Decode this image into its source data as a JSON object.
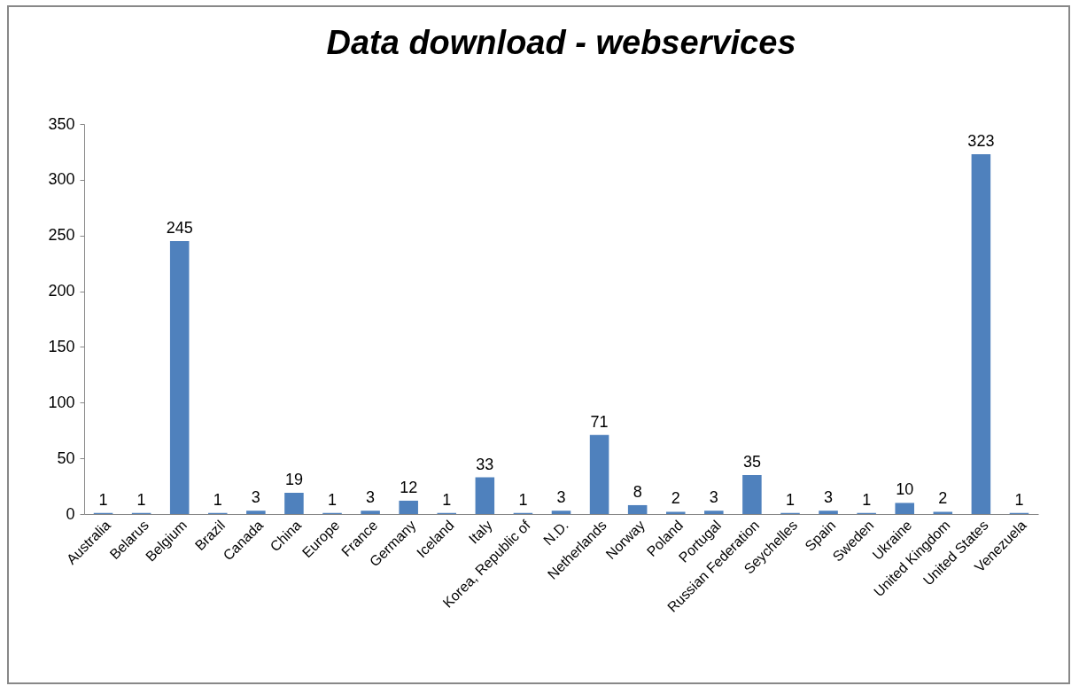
{
  "chart_data": {
    "type": "bar",
    "title": "Data download - webservices",
    "categories": [
      "Australia",
      "Belarus",
      "Belgium",
      "Brazil",
      "Canada",
      "China",
      "Europe",
      "France",
      "Germany",
      "Iceland",
      "Italy",
      "Korea, Republic of",
      "N.D.",
      "Netherlands",
      "Norway",
      "Poland",
      "Portugal",
      "Russian Federation",
      "Seychelles",
      "Spain",
      "Sweden",
      "Ukraine",
      "United Kingdom",
      "United States",
      "Venezuela"
    ],
    "values": [
      1,
      1,
      245,
      1,
      3,
      19,
      1,
      3,
      12,
      1,
      33,
      1,
      3,
      71,
      8,
      2,
      3,
      35,
      1,
      3,
      1,
      10,
      2,
      323,
      1
    ],
    "color": "#4f81bd",
    "ylim": [
      0,
      350
    ],
    "yticks": [
      0,
      50,
      100,
      150,
      200,
      250,
      300,
      350
    ],
    "grid": false,
    "data_labels": true
  }
}
